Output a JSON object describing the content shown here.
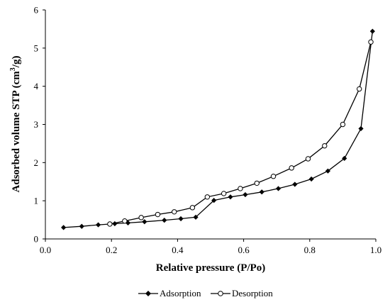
{
  "chart_data": {
    "type": "scatter",
    "title": "",
    "xlabel": "Relative pressure (P/Po)",
    "ylabel_main": "Adsorbed volume STP (cm",
    "ylabel_sup": "3",
    "ylabel_end": "/g)",
    "xlim": [
      0,
      1.0
    ],
    "ylim": [
      0,
      6
    ],
    "x_ticks": [
      "0.0",
      "0.2",
      "0.4",
      "0.6",
      "0.8",
      "1.0"
    ],
    "x_tick_values": [
      0,
      0.2,
      0.4,
      0.6,
      0.8,
      1.0
    ],
    "y_ticks": [
      "0",
      "1",
      "2",
      "3",
      "4",
      "5",
      "6"
    ],
    "y_tick_values": [
      0,
      1,
      2,
      3,
      4,
      5,
      6
    ],
    "grid": false,
    "legend_position": "bottom",
    "series": [
      {
        "name": "Adsorption",
        "marker": "diamond-filled",
        "color": "#000000",
        "x": [
          0.055,
          0.11,
          0.16,
          0.21,
          0.25,
          0.3,
          0.36,
          0.41,
          0.455,
          0.51,
          0.56,
          0.605,
          0.655,
          0.705,
          0.755,
          0.805,
          0.855,
          0.905,
          0.955,
          0.99
        ],
        "y": [
          0.3,
          0.33,
          0.37,
          0.4,
          0.42,
          0.45,
          0.49,
          0.53,
          0.57,
          1.01,
          1.1,
          1.16,
          1.23,
          1.32,
          1.43,
          1.57,
          1.78,
          2.11,
          2.89,
          5.44
        ]
      },
      {
        "name": "Desorption",
        "marker": "circle-open",
        "color": "#000000",
        "x": [
          0.195,
          0.24,
          0.29,
          0.34,
          0.39,
          0.445,
          0.49,
          0.54,
          0.59,
          0.64,
          0.69,
          0.745,
          0.795,
          0.845,
          0.9,
          0.95,
          0.985
        ],
        "y": [
          0.39,
          0.47,
          0.56,
          0.64,
          0.71,
          0.82,
          1.1,
          1.19,
          1.32,
          1.46,
          1.64,
          1.86,
          2.1,
          2.44,
          3.0,
          3.93,
          5.16
        ]
      }
    ]
  }
}
